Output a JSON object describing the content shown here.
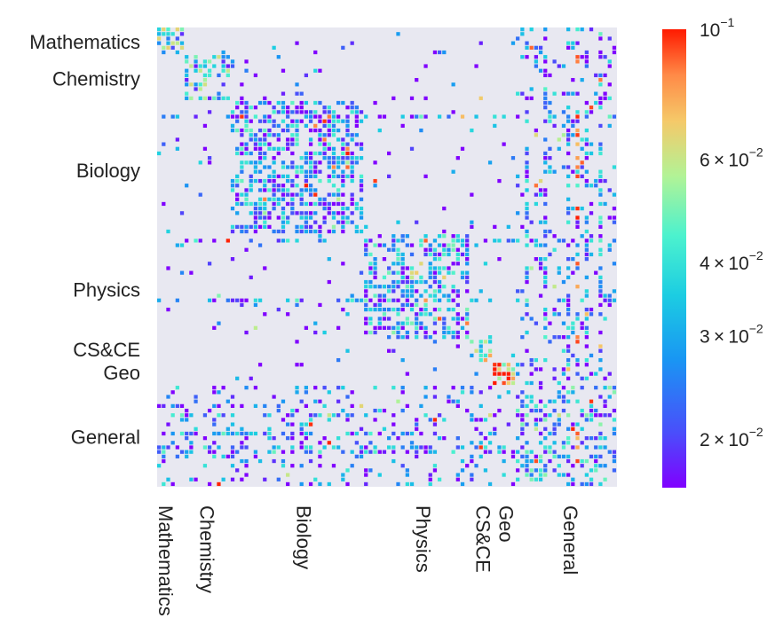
{
  "chart_data": {
    "type": "heatmap",
    "title": "",
    "xlabel": "",
    "ylabel": "",
    "colormap": "rainbow",
    "color_scale": "log",
    "background_color": "#e8e8f1",
    "colorbar": {
      "min": 0.0165,
      "max": 0.1,
      "ticks": [
        {
          "value": 0.1,
          "mantissa": "",
          "base": "10",
          "exponent": "−1"
        },
        {
          "value": 0.06,
          "mantissa": "6",
          "base": "10",
          "exponent": "−2"
        },
        {
          "value": 0.04,
          "mantissa": "4",
          "base": "10",
          "exponent": "−2"
        },
        {
          "value": 0.03,
          "mantissa": "3",
          "base": "10",
          "exponent": "−2"
        },
        {
          "value": 0.02,
          "mantissa": "2",
          "base": "10",
          "exponent": "−2"
        }
      ]
    },
    "grid_size": 100,
    "categories": [
      {
        "name": "Mathematics",
        "start": 0,
        "end": 6,
        "y_tick": 3
      },
      {
        "name": "Chemistry",
        "start": 6,
        "end": 16,
        "y_tick": 11
      },
      {
        "name": "Biology",
        "start": 16,
        "end": 45,
        "y_tick": 31
      },
      {
        "name": "Physics",
        "start": 45,
        "end": 68,
        "y_tick": 57
      },
      {
        "name": "CS&CE",
        "start": 68,
        "end": 73,
        "y_tick": 70
      },
      {
        "name": "Geo",
        "start": 73,
        "end": 78,
        "y_tick": 75
      },
      {
        "name": "General",
        "start": 78,
        "end": 100,
        "y_tick": 89
      }
    ],
    "x_tick_positions": {
      "Mathematics": 1,
      "Chemistry": 10,
      "Biology": 31,
      "Physics": 57,
      "CS&CE": 70,
      "Geo": 75,
      "General": 89
    },
    "x_tick_labels": [
      "Mathematics",
      "Chemistry",
      "Biology",
      "Physics",
      "CS&CE",
      "Geo",
      "General"
    ],
    "y_tick_labels": [
      "Mathematics",
      "Chemistry",
      "Biology",
      "Physics",
      "CS&CE",
      "Geo",
      "General"
    ],
    "blocks": [
      {
        "from": "Mathematics",
        "to": "Mathematics",
        "density": 0.6,
        "mean": 0.035
      },
      {
        "from": "Chemistry",
        "to": "Chemistry",
        "density": 0.55,
        "mean": 0.033
      },
      {
        "from": "Biology",
        "to": "Biology",
        "density": 0.55,
        "mean": 0.025
      },
      {
        "from": "Physics",
        "to": "Physics",
        "density": 0.55,
        "mean": 0.026
      },
      {
        "from": "CS&CE",
        "to": "CS&CE",
        "density": 0.5,
        "mean": 0.05
      },
      {
        "from": "Geo",
        "to": "Geo",
        "density": 0.8,
        "mean": 0.08
      },
      {
        "from": "General",
        "to": "General",
        "density": 0.4,
        "mean": 0.028
      }
    ]
  }
}
